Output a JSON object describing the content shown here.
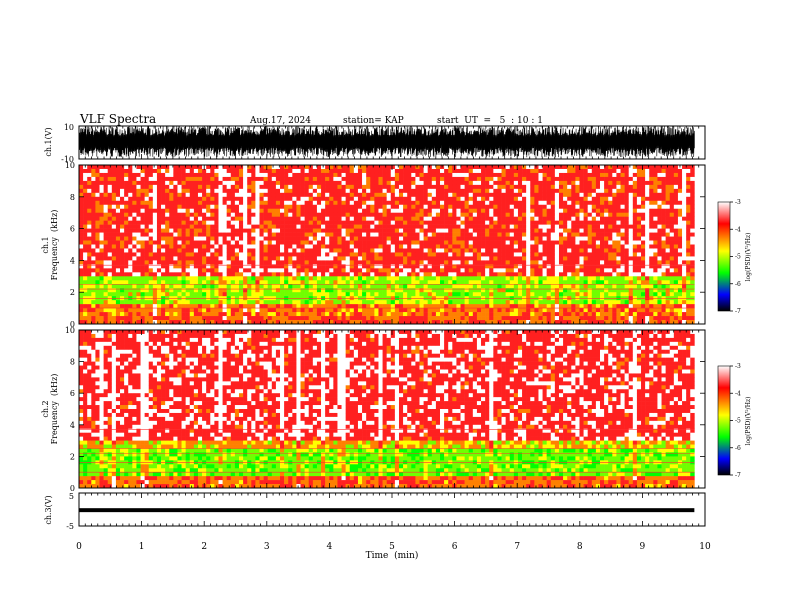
{
  "header": {
    "title": "VLF Spectra",
    "date": "Aug.17, 2024",
    "station": "station= KAP",
    "start": "start  UT  =   5  : 10 : 1"
  },
  "colors": {
    "background": "#ffffff",
    "spectrogram_high": "#ff0000",
    "spectrogram_mid": "#ffff00",
    "spectrogram_low": "#00ff00",
    "waveform": "#000000"
  },
  "colorbar": {
    "label": "log(PSD)(V²/Hz)",
    "ticks": [
      "-3",
      "-4",
      "-5",
      "-6",
      "-7"
    ],
    "stops": [
      "#ffffff",
      "#ff0000",
      "#ffff00",
      "#00ff00",
      "#0000ff",
      "#000000"
    ]
  },
  "chart_data": [
    {
      "type": "line",
      "id": "ch1-waveform",
      "ylabel": "ch.1(V)",
      "ylim": [
        -10,
        10
      ],
      "yticks": [
        "10",
        "-10"
      ],
      "xlim": [
        0,
        9.83
      ],
      "envelope": {
        "mean": 0.5,
        "amplitude_min": -9,
        "amplitude_max": 10
      }
    },
    {
      "type": "heatmap",
      "id": "ch1-spectrogram",
      "title_lines": [
        "ch.1",
        "Frequency  (kHz)"
      ],
      "ylim": [
        0,
        10
      ],
      "yticks": [
        "10",
        "8",
        "6",
        "4",
        "2",
        "0"
      ],
      "xlim": [
        0,
        9.83
      ],
      "bands": [
        {
          "from": 3.1,
          "to": 10,
          "level": -3.6
        },
        {
          "from": 2.9,
          "to": 3.1,
          "level": -4.3
        },
        {
          "from": 1.2,
          "to": 2.9,
          "level": -4.8
        },
        {
          "from": 0.6,
          "to": 1.2,
          "level": -4.1
        },
        {
          "from": 0,
          "to": 0.6,
          "level": -3.9
        }
      ]
    },
    {
      "type": "heatmap",
      "id": "ch2-spectrogram",
      "title_lines": [
        "ch.2",
        "Frequency  (kHz)"
      ],
      "ylim": [
        0,
        10
      ],
      "yticks": [
        "10",
        "8",
        "6",
        "4",
        "2",
        "0"
      ],
      "xlim": [
        0,
        9.83
      ],
      "bands": [
        {
          "from": 3.0,
          "to": 10,
          "level": -3.5
        },
        {
          "from": 2.6,
          "to": 3.0,
          "level": -4.4
        },
        {
          "from": 0.7,
          "to": 2.6,
          "level": -5.0
        },
        {
          "from": 0,
          "to": 0.7,
          "level": -4.0
        }
      ]
    },
    {
      "type": "line",
      "id": "ch3-waveform",
      "ylabel": "ch.3(V)",
      "ylim": [
        -5,
        5
      ],
      "yticks": [
        "5",
        "-5"
      ],
      "xlim": [
        0,
        9.83
      ],
      "envelope": {
        "mean": -0.2,
        "amplitude_min": -0.8,
        "amplitude_max": 0.4
      }
    }
  ],
  "xaxis": {
    "label": "Time  (min)",
    "range": [
      0,
      10
    ],
    "ticks": [
      "0",
      "1",
      "2",
      "3",
      "4",
      "5",
      "6",
      "7",
      "8",
      "9",
      "10"
    ]
  }
}
